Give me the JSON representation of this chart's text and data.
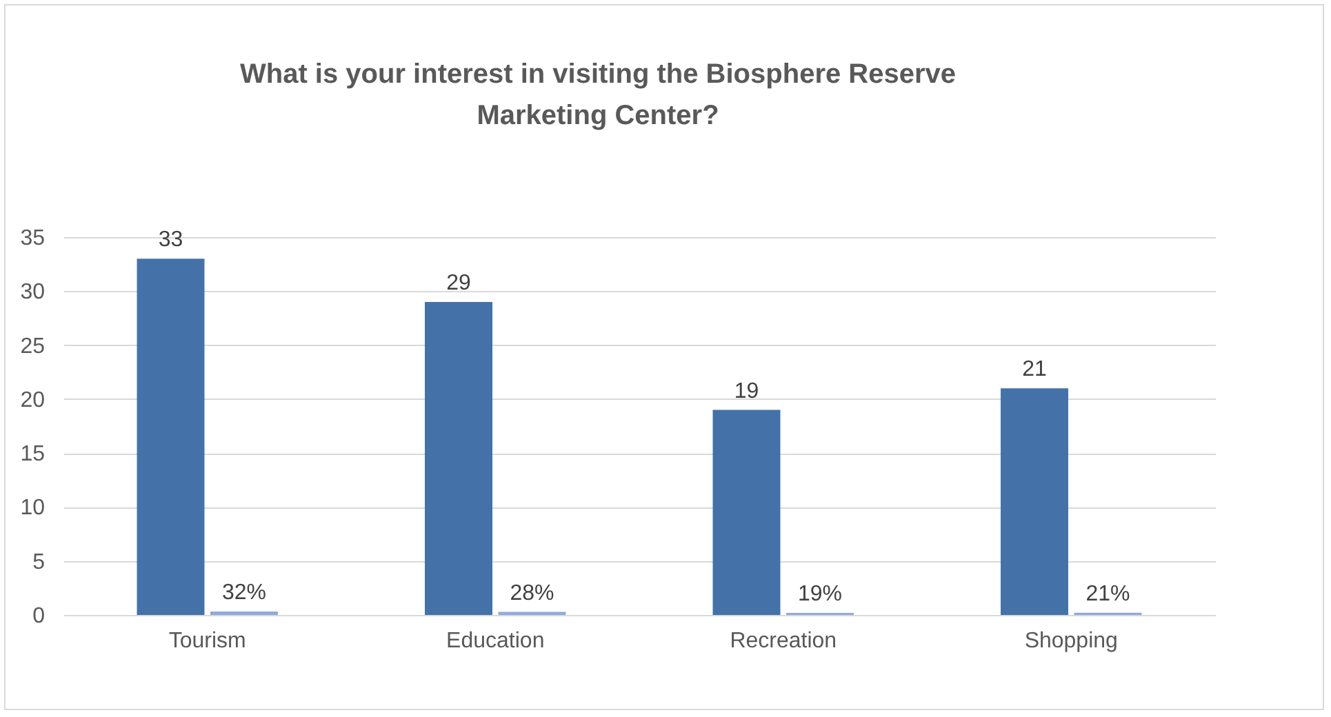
{
  "chart_data": {
    "type": "bar",
    "title": "What is your interest in visiting the Biosphere Reserve Marketing Center?",
    "categories": [
      "Tourism",
      "Education",
      "Recreation",
      "Shopping"
    ],
    "series": [
      {
        "color": "#4472a8",
        "values": [
          33,
          29,
          19,
          21
        ],
        "value_labels": [
          "33",
          "29",
          "19",
          "21"
        ]
      },
      {
        "color": "#8faadc",
        "values": [
          0.32,
          0.28,
          0.19,
          0.21
        ],
        "value_labels": [
          "32%",
          "28%",
          "19%",
          "21%"
        ]
      }
    ],
    "ylim": [
      0,
      35
    ],
    "yticks": [
      0,
      5,
      10,
      15,
      20,
      25,
      30,
      35
    ],
    "grid": "y"
  }
}
